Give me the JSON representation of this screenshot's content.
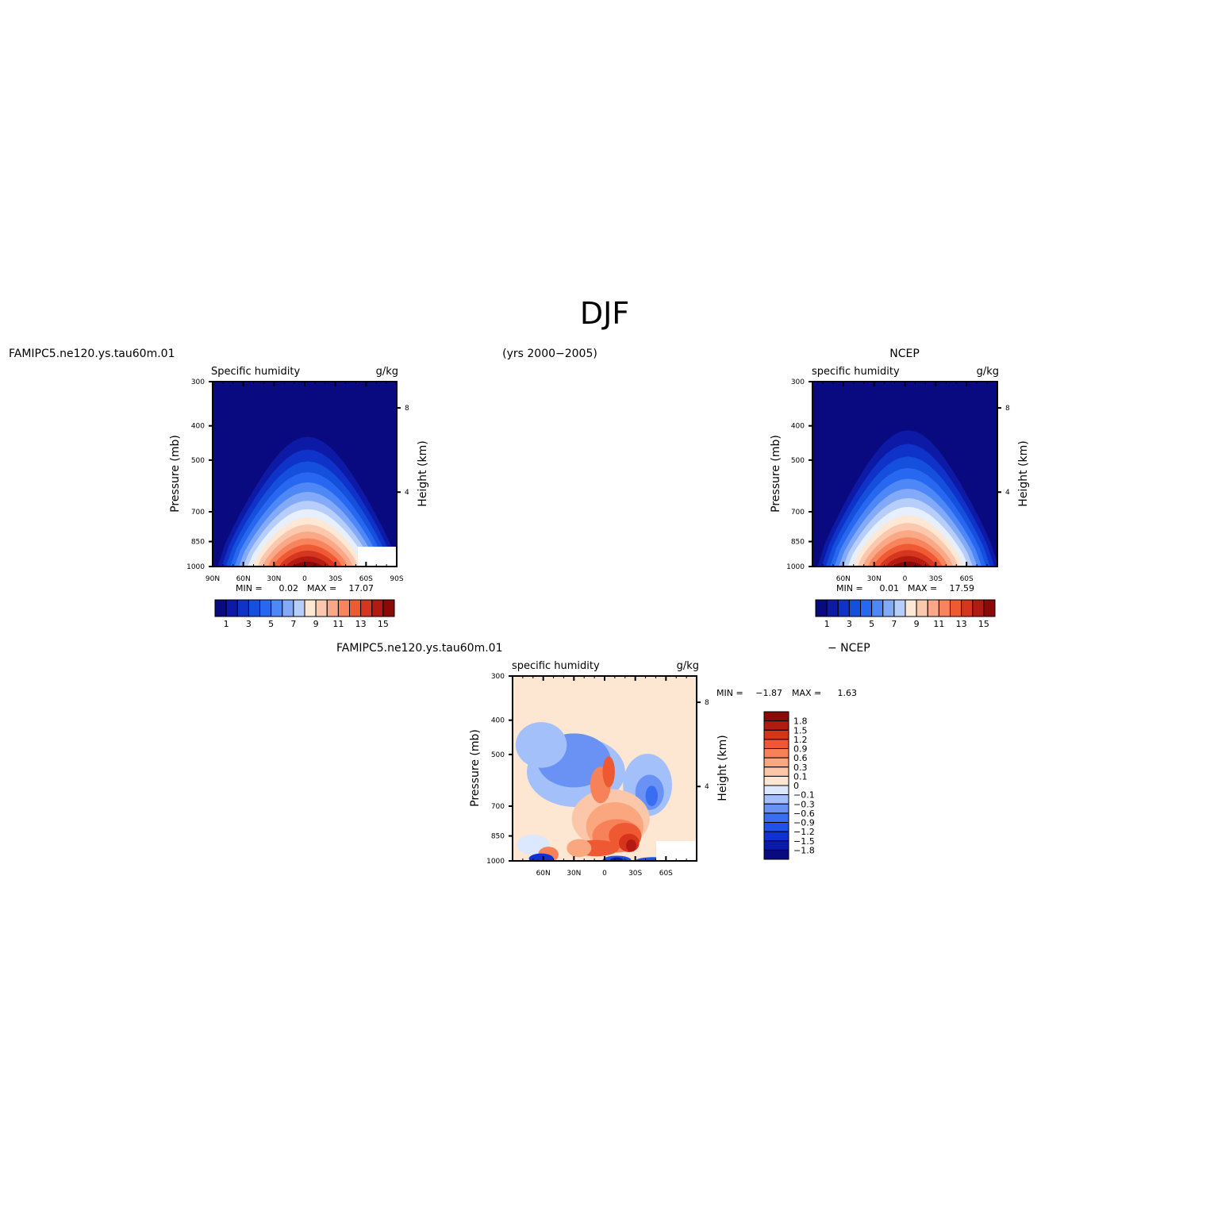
{
  "figure": {
    "title": "DJF",
    "left_header": "FAMIPC5.ne120.ys.tau60m.01",
    "center_header": "(yrs 2000−2005)",
    "right_header": "NCEP",
    "diff_header_left": "FAMIPC5.ne120.ys.tau60m.01",
    "diff_header_right": "− NCEP"
  },
  "chart_data": [
    {
      "id": "model",
      "type": "heatmap",
      "title_left": "Specific humidity",
      "title_right": "g/kg",
      "ylabel": "Pressure (mb)",
      "y2label": "Height (km)",
      "x_ticks": [
        "90N",
        "60N",
        "30N",
        "0",
        "30S",
        "60S",
        "90S"
      ],
      "y_ticks": [
        "300",
        "400",
        "500",
        "700",
        "850",
        "1000"
      ],
      "y2_ticks": [
        "8",
        "4"
      ],
      "min_label": "MIN =",
      "min_value": "0.02",
      "max_label": "MAX =",
      "max_value": "17.07",
      "colorbar_labels": [
        "1",
        "3",
        "5",
        "7",
        "9",
        "11",
        "13",
        "15"
      ],
      "xlim": [
        90,
        -90
      ],
      "ylim": [
        1000,
        300
      ],
      "peak_value": 17.07,
      "peak_lat": -5,
      "missing_region": {
        "lat": [
          -60,
          -90
        ],
        "p": [
          1000,
          925
        ]
      }
    },
    {
      "id": "obs",
      "type": "heatmap",
      "title_left": "specific humidity",
      "title_right": "g/kg",
      "ylabel": "Pressure (mb)",
      "y2label": "Height (km)",
      "x_ticks": [
        "60N",
        "30N",
        "0",
        "30S",
        "60S"
      ],
      "y_ticks": [
        "300",
        "400",
        "500",
        "700",
        "850",
        "1000"
      ],
      "y2_ticks": [
        "8",
        "4"
      ],
      "min_label": "MIN =",
      "min_value": "0.01",
      "max_label": "MAX =",
      "max_value": "17.59",
      "colorbar_labels": [
        "1",
        "3",
        "5",
        "7",
        "9",
        "11",
        "13",
        "15"
      ],
      "xlim": [
        90,
        -90
      ],
      "ylim": [
        1000,
        300
      ],
      "peak_value": 17.59,
      "peak_lat": -8
    },
    {
      "id": "diff",
      "type": "heatmap",
      "title_left": "specific humidity",
      "title_right": "g/kg",
      "ylabel": "Pressure (mb)",
      "y2label": "Height (km)",
      "x_ticks": [
        "60N",
        "30N",
        "0",
        "30S",
        "60S"
      ],
      "y_ticks": [
        "300",
        "400",
        "500",
        "700",
        "850",
        "1000"
      ],
      "y2_ticks": [
        "8",
        "4"
      ],
      "min_label": "MIN =",
      "min_value": "−1.87",
      "max_label": "MAX =",
      "max_value": "1.63",
      "colorbar_labels": [
        "1.8",
        "1.5",
        "1.2",
        "0.9",
        "0.6",
        "0.3",
        "0.1",
        "0",
        "−0.1",
        "−0.3",
        "−0.6",
        "−0.9",
        "−1.2",
        "−1.5",
        "−1.8"
      ],
      "xlim": [
        90,
        -90
      ],
      "ylim": [
        1000,
        300
      ],
      "missing_region": {
        "lat": [
          -50,
          -90
        ],
        "p": [
          1000,
          925
        ]
      }
    }
  ]
}
